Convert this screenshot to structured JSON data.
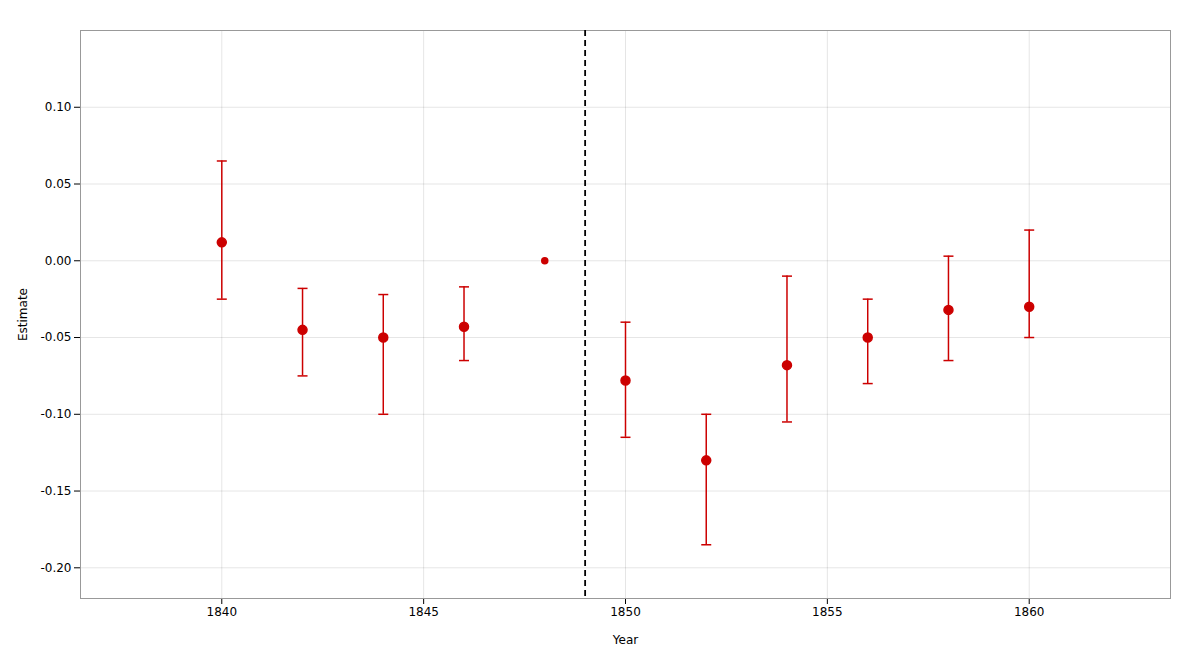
{
  "chart_data": {
    "type": "scatter",
    "xlabel": "Year",
    "ylabel": "Estimate",
    "x": [
      1840,
      1842,
      1844,
      1846,
      1848,
      1850,
      1852,
      1854,
      1856,
      1858,
      1860
    ],
    "values": [
      0.012,
      -0.045,
      -0.05,
      -0.043,
      0.0,
      -0.078,
      -0.13,
      -0.068,
      -0.05,
      -0.032,
      -0.03
    ],
    "ci_lower": [
      -0.025,
      -0.075,
      -0.1,
      -0.065,
      0.0,
      -0.115,
      -0.185,
      -0.105,
      -0.08,
      -0.065,
      -0.05
    ],
    "ci_upper": [
      0.065,
      -0.018,
      -0.022,
      -0.017,
      0.0,
      -0.04,
      -0.1,
      -0.01,
      -0.025,
      0.003,
      0.02
    ],
    "reference_year": 1848,
    "vline_x": 1849,
    "color": "#CC0000",
    "xlim": [
      1836.5,
      1863.5
    ],
    "xticks": [
      1840,
      1845,
      1850,
      1855,
      1860
    ],
    "ylim": [
      -0.22,
      0.15
    ],
    "yticks": [
      {
        "value": -0.2,
        "label": "-0.20"
      },
      -0.15,
      {
        "value": -0.1,
        "label": "-0.10"
      },
      -0.05,
      {
        "value": 0.0,
        "label": "0.00"
      },
      0.05,
      {
        "value": 0.1,
        "label": "0.10"
      }
    ],
    "grid": true
  }
}
